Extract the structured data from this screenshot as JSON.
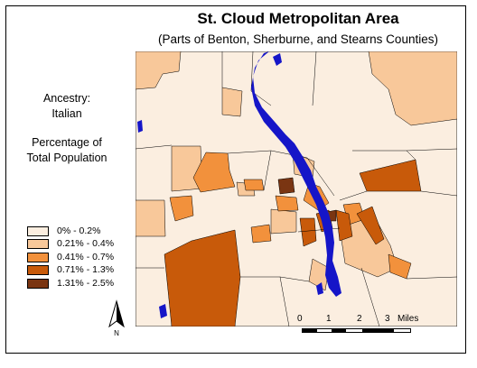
{
  "title": "St. Cloud Metropolitan Area",
  "subtitle": "(Parts of Benton, Sherburne, and Stearns Counties)",
  "ancestry": {
    "line1": "Ancestry:",
    "line2": "Italian"
  },
  "measure": {
    "line1": "Percentage of",
    "line2": "Total Population"
  },
  "legend": [
    {
      "label": "0% - 0.2%",
      "color": "#fbeee0"
    },
    {
      "label": "0.21% - 0.4%",
      "color": "#f8c89a"
    },
    {
      "label": "0.41% - 0.7%",
      "color": "#f2913c"
    },
    {
      "label": "0.71% - 1.3%",
      "color": "#c85a0a"
    },
    {
      "label": "1.31% - 2.5%",
      "color": "#7a3512"
    }
  ],
  "water_color": "#1515c8",
  "north": {
    "label": "N"
  },
  "scale": {
    "ticks": [
      "0",
      "1",
      "2",
      "3"
    ],
    "unit": "Miles"
  }
}
